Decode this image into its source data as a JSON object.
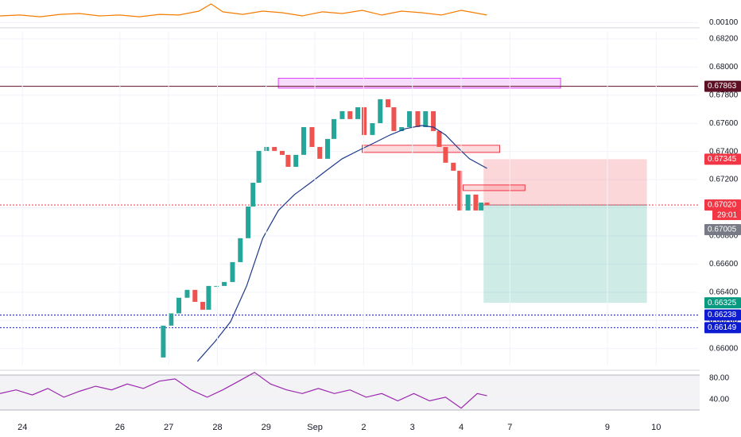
{
  "chart_data": [
    {
      "type": "line",
      "xlim": [
        -0.46,
        13.86
      ],
      "ylim": [
        0.0006,
        0.0022
      ],
      "yticks": [
        {
          "value": 0.001,
          "label": "0.00100"
        }
      ],
      "series": [
        {
          "color": "#f57c00",
          "x": [
            -0.46,
            -0.05,
            0.36,
            0.77,
            1.17,
            1.58,
            1.99,
            2.4,
            2.81,
            3.21,
            3.62,
            3.87,
            4.11,
            4.52,
            4.93,
            5.33,
            5.74,
            6.15,
            6.56,
            6.97,
            7.37,
            7.78,
            8.19,
            8.59,
            9.0,
            9.53
          ],
          "values": [
            0.0014,
            0.00145,
            0.00135,
            0.00149,
            0.00154,
            0.0014,
            0.00145,
            0.00135,
            0.00149,
            0.00145,
            0.00168,
            0.00211,
            0.00164,
            0.00149,
            0.00168,
            0.00159,
            0.0014,
            0.00164,
            0.00154,
            0.00173,
            0.00145,
            0.00168,
            0.00159,
            0.00145,
            0.00173,
            0.00145
          ]
        }
      ]
    },
    {
      "type": "candlestick",
      "xlim": [
        -0.46,
        13.86
      ],
      "ylim": [
        0.6588,
        0.6825
      ],
      "yticks": [
        {
          "value": 0.682,
          "label": "0.68200"
        },
        {
          "value": 0.68,
          "label": "0.68000"
        },
        {
          "value": 0.678,
          "label": "0.67800"
        },
        {
          "value": 0.676,
          "label": "0.67600"
        },
        {
          "value": 0.674,
          "label": "0.67400"
        },
        {
          "value": 0.672,
          "label": "0.67200"
        },
        {
          "value": 0.67,
          "label": "0.67000"
        },
        {
          "value": 0.668,
          "label": "0.66800"
        },
        {
          "value": 0.666,
          "label": "0.66600"
        },
        {
          "value": 0.664,
          "label": "0.66400"
        },
        {
          "value": 0.662,
          "label": "0.66200"
        },
        {
          "value": 0.66,
          "label": "0.66000"
        }
      ],
      "series": [
        {
          "type": "candlestick",
          "up_color": "#26a69a",
          "down_color": "#ef5350",
          "x": [
            2.72,
            2.89,
            3.05,
            3.21,
            3.38,
            3.54,
            3.7,
            3.82,
            3.98,
            4.14,
            4.31,
            4.47,
            4.63,
            4.73,
            4.85,
            5.01,
            5.17,
            5.33,
            5.45,
            5.61,
            5.77,
            5.94,
            6.1,
            6.26,
            6.39,
            6.56,
            6.72,
            6.88,
            7.01,
            7.18,
            7.34,
            7.5,
            7.62,
            7.78,
            7.94,
            8.11,
            8.27,
            8.43,
            8.55,
            8.68,
            8.84,
            8.97,
            9.14,
            9.3,
            9.41,
            9.53
          ],
          "values": [
            0.65937,
            0.66163,
            0.6625,
            0.66361,
            0.66417,
            0.66332,
            0.66276,
            0.66445,
            0.66445,
            0.66473,
            0.66614,
            0.66784,
            0.67009,
            0.67178,
            0.67404,
            0.67432,
            0.67404,
            0.67376,
            0.67291,
            0.67376,
            0.67573,
            0.67432,
            0.67348,
            0.67489,
            0.6763,
            0.67686,
            0.6763,
            0.67714,
            0.67517,
            0.67601,
            0.67771,
            0.67714,
            0.67545,
            0.67573,
            0.67686,
            0.67573,
            0.67686,
            0.67545,
            0.67432,
            0.6732,
            0.67263,
            0.66981,
            0.67094,
            0.66981,
            0.67037,
            0.6702
          ]
        },
        {
          "type": "line",
          "color": "#1e3a8a",
          "x": [
            3.59,
            3.95,
            4.27,
            4.6,
            4.93,
            5.25,
            5.58,
            5.91,
            6.23,
            6.56,
            6.88,
            7.21,
            7.54,
            7.86,
            8.19,
            8.43,
            8.68,
            8.92,
            9.17,
            9.53
          ],
          "values": [
            0.65909,
            0.6605,
            0.66191,
            0.66445,
            0.66784,
            0.66981,
            0.67094,
            0.67178,
            0.67263,
            0.67348,
            0.67404,
            0.6746,
            0.67517,
            0.67562,
            0.67584,
            0.67573,
            0.67517,
            0.67432,
            0.67348,
            0.6728
          ]
        }
      ],
      "zones": [
        {
          "x": [
            5.25,
            11.04
          ],
          "y": [
            0.6785,
            0.6792
          ],
          "color": "#e040fb"
        },
        {
          "x": [
            6.97,
            9.79
          ],
          "y": [
            0.67393,
            0.67444
          ],
          "color": "#f23645"
        },
        {
          "x": [
            9.04,
            10.31
          ],
          "y": [
            0.67122,
            0.67162
          ],
          "color": "#f23645"
        }
      ],
      "position": {
        "x": [
          9.46,
          12.81
        ],
        "entry": 0.6702,
        "stop": 0.67345,
        "target": 0.66325
      },
      "hlines": [
        {
          "value": 0.67863,
          "color": "#5d0f24",
          "style": "solid"
        },
        {
          "value": 0.6702,
          "color": "#f23645",
          "style": "dotted"
        },
        {
          "value": 0.66238,
          "color": "#0d1bd1",
          "style": "dotted"
        },
        {
          "value": 0.66149,
          "color": "#0d1bd1",
          "style": "dotted"
        }
      ],
      "markers": [
        {
          "value": 0.67863,
          "label": "0.67863",
          "color": "#5d0f24"
        },
        {
          "value": 0.67345,
          "label": "0.67345",
          "color": "#f23645"
        },
        {
          "value": 0.6702,
          "label": "0.67020",
          "color": "#f23645",
          "countdown": "29:01"
        },
        {
          "value": 0.67005,
          "label": "0.67005",
          "color": "#787b86"
        },
        {
          "value": 0.66325,
          "label": "0.66325",
          "color": "#089981"
        },
        {
          "value": 0.66238,
          "label": "0.66238",
          "color": "#0d1bd1"
        },
        {
          "value": 0.66149,
          "label": "0.66149",
          "color": "#0d1bd1"
        }
      ]
    },
    {
      "type": "line",
      "xlim": [
        -0.46,
        13.86
      ],
      "ylim": [
        17,
        92
      ],
      "yticks": [
        {
          "value": 80,
          "label": "80.00"
        },
        {
          "value": 40,
          "label": "40.00"
        }
      ],
      "xticks": [
        {
          "value": 0,
          "label": "24"
        },
        {
          "value": 2,
          "label": "26"
        },
        {
          "value": 3,
          "label": "27"
        },
        {
          "value": 4,
          "label": "28"
        },
        {
          "value": 5,
          "label": "29"
        },
        {
          "value": 6,
          "label": "Sep"
        },
        {
          "value": 7,
          "label": "2"
        },
        {
          "value": 8,
          "label": "3"
        },
        {
          "value": 9,
          "label": "4"
        },
        {
          "value": 10,
          "label": "7"
        },
        {
          "value": 12,
          "label": "9"
        },
        {
          "value": 13,
          "label": "10"
        }
      ],
      "series": [
        {
          "color": "#9c27b0",
          "x": [
            -0.46,
            -0.13,
            0.2,
            0.52,
            0.85,
            1.17,
            1.5,
            1.83,
            2.15,
            2.48,
            2.81,
            3.13,
            3.46,
            3.79,
            4.11,
            4.44,
            4.76,
            5.09,
            5.42,
            5.74,
            6.07,
            6.4,
            6.72,
            7.05,
            7.37,
            7.7,
            8.03,
            8.35,
            8.68,
            9.0,
            9.33,
            9.53
          ],
          "values": [
            51.0,
            57.9,
            48.3,
            60.7,
            44.1,
            55.2,
            64.8,
            57.9,
            69.0,
            60.7,
            74.5,
            78.6,
            57.9,
            44.1,
            57.9,
            74.5,
            91,
            69.0,
            57.9,
            51.0,
            60.7,
            51.0,
            57.9,
            44.1,
            51.0,
            37.2,
            51.0,
            37.2,
            44.1,
            23.4,
            51.0,
            46.9
          ]
        }
      ]
    }
  ]
}
